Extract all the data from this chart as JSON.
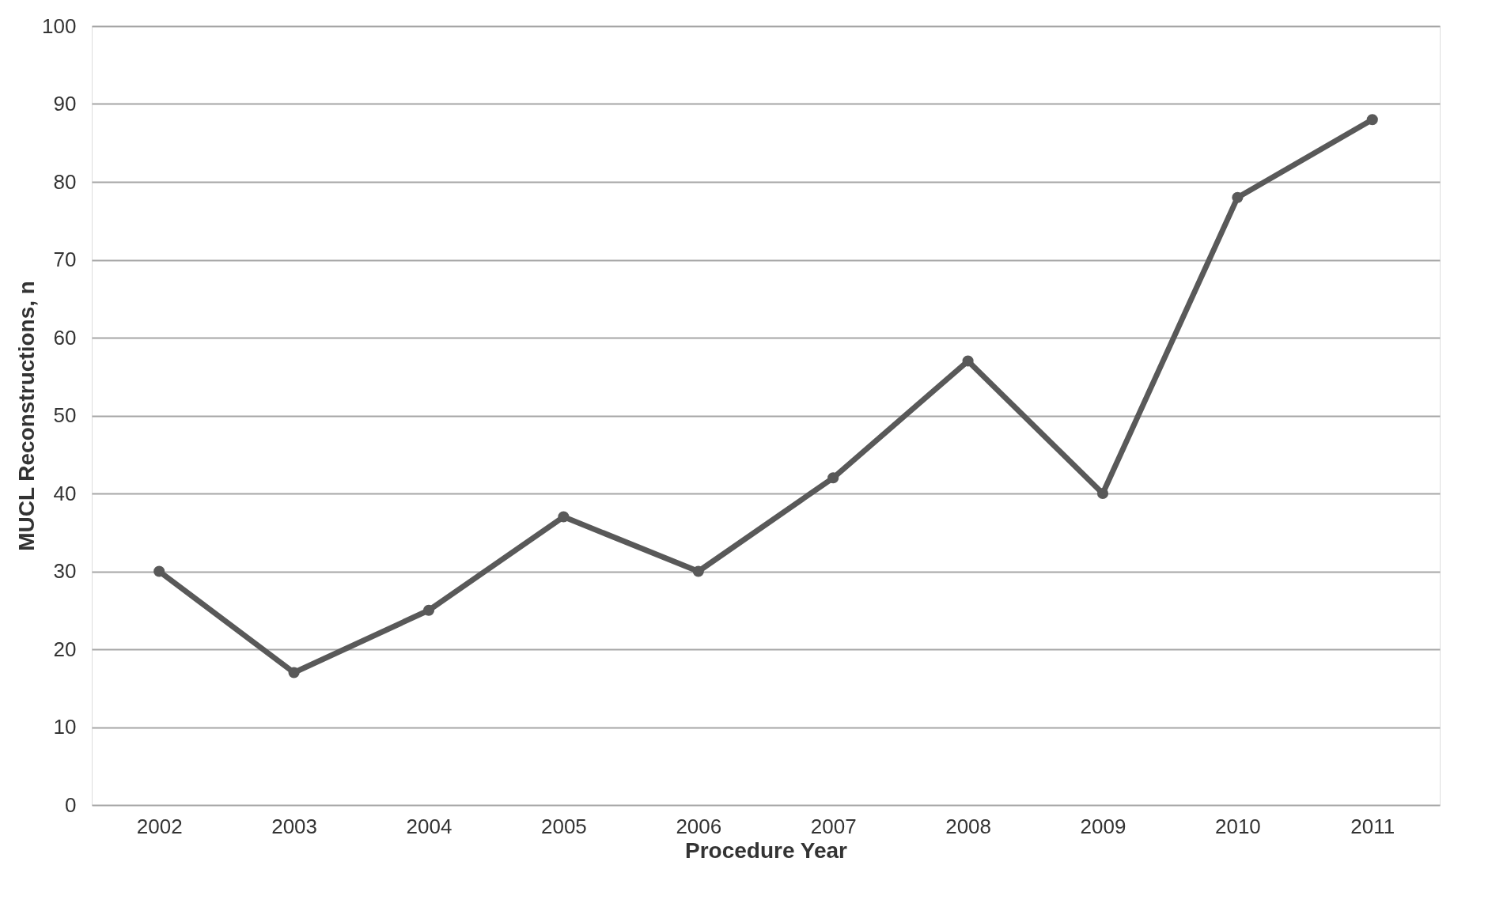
{
  "chart_data": {
    "type": "line",
    "xlabel": "Procedure Year",
    "ylabel": "MUCL Reconstructions, n",
    "categories": [
      "2002",
      "2003",
      "2004",
      "2005",
      "2006",
      "2007",
      "2008",
      "2009",
      "2010",
      "2011"
    ],
    "series": [
      {
        "color": "#595959",
        "values": [
          30,
          17,
          25,
          37,
          30,
          42,
          57,
          40,
          78,
          88
        ]
      }
    ],
    "ylim": [
      0,
      100
    ],
    "yticks": [
      0,
      10,
      20,
      30,
      40,
      50,
      60,
      70,
      80,
      90,
      100
    ],
    "grid": "y",
    "marker": "circle",
    "line_style": "solid"
  }
}
